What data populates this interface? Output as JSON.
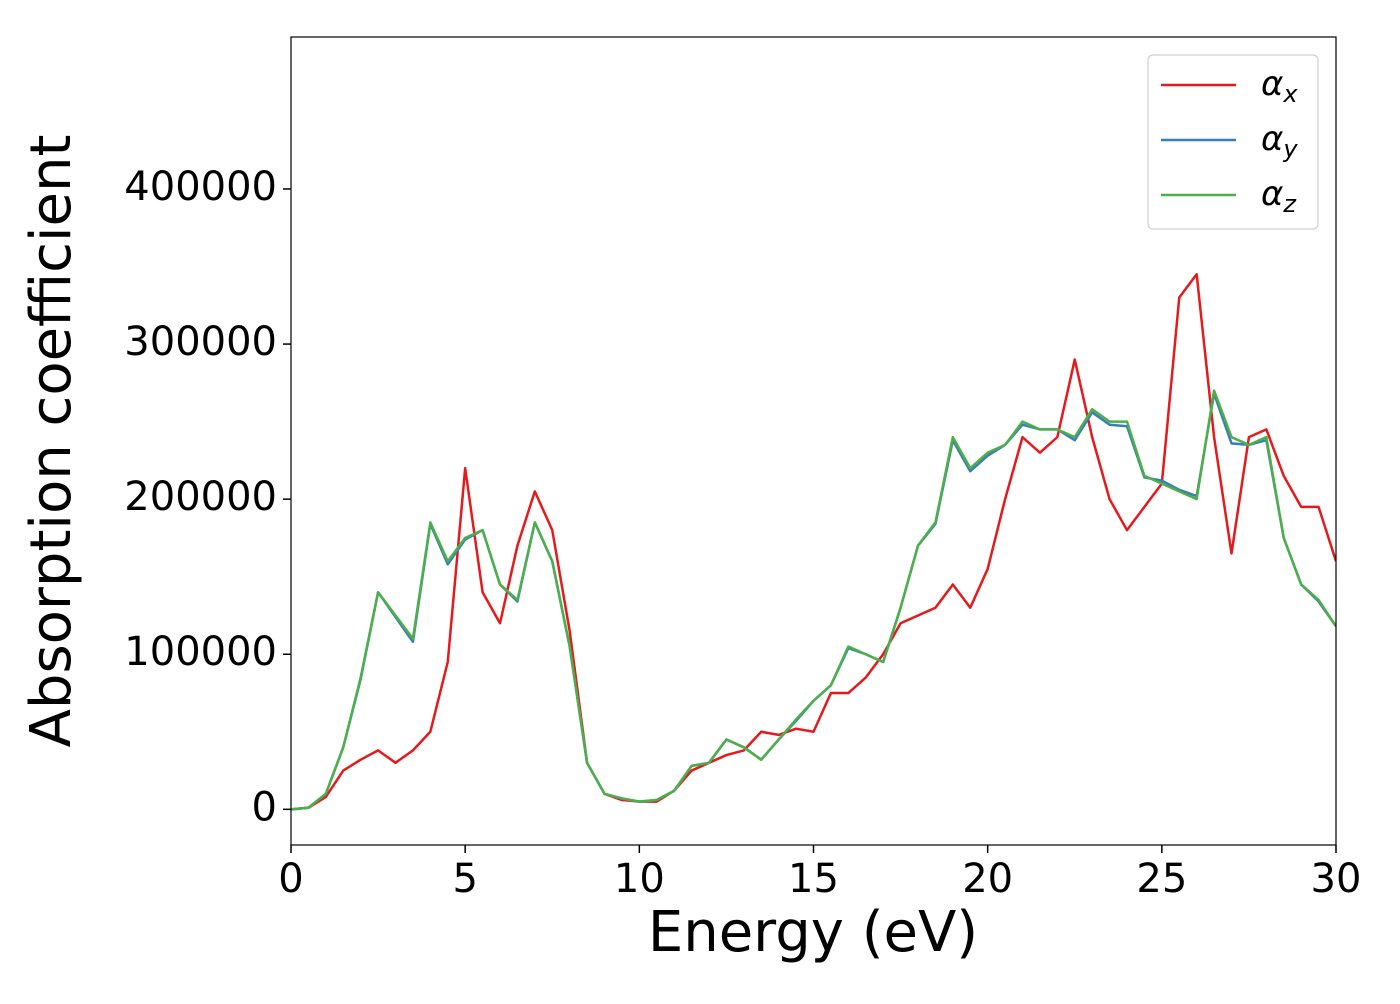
{
  "chart_data": {
    "type": "line",
    "xlabel": "Energy (eV)",
    "ylabel": "Absorption coefficient",
    "x": [
      0,
      0.5,
      1,
      1.5,
      2,
      2.5,
      3,
      3.5,
      4,
      4.5,
      5,
      5.5,
      6,
      6.5,
      7,
      7.5,
      8,
      8.5,
      9,
      9.5,
      10,
      10.5,
      11,
      11.5,
      12,
      12.5,
      13,
      13.5,
      14,
      14.5,
      15,
      15.5,
      16,
      16.5,
      17,
      17.5,
      18,
      18.5,
      19,
      19.5,
      20,
      20.5,
      21,
      21.5,
      22,
      22.5,
      23,
      23.5,
      24,
      24.5,
      25,
      25.5,
      26,
      26.5,
      27,
      27.5,
      28,
      28.5,
      29,
      29.5,
      30
    ],
    "series": [
      {
        "name": "αx",
        "color": "#e41a1c",
        "values": [
          0,
          1000,
          8000,
          25000,
          32000,
          38000,
          30000,
          38000,
          50000,
          95000,
          220000,
          140000,
          120000,
          170000,
          205000,
          180000,
          115000,
          30000,
          10000,
          6000,
          5000,
          5000,
          12000,
          25000,
          30000,
          35000,
          38000,
          50000,
          48000,
          52000,
          50000,
          75000,
          75000,
          85000,
          100000,
          120000,
          125000,
          130000,
          145000,
          130000,
          155000,
          200000,
          240000,
          230000,
          240000,
          290000,
          240000,
          200000,
          180000,
          195000,
          210000,
          330000,
          345000,
          240000,
          165000,
          240000,
          245000,
          215000,
          195000,
          195000,
          160000
        ]
      },
      {
        "name": "αy",
        "color": "#377eb8",
        "values": [
          0,
          1000,
          10000,
          40000,
          84000,
          140000,
          124000,
          108000,
          184000,
          158000,
          174000,
          180000,
          145000,
          134000,
          185000,
          160000,
          105000,
          30000,
          10000,
          7000,
          5000,
          6000,
          12000,
          28000,
          30000,
          45000,
          40000,
          32000,
          45000,
          57000,
          70000,
          80000,
          104000,
          100000,
          95000,
          130000,
          170000,
          184000,
          238000,
          218000,
          228000,
          235000,
          248000,
          245000,
          245000,
          238000,
          256000,
          248000,
          247000,
          214000,
          212000,
          206000,
          202000,
          268000,
          236000,
          235000,
          238000,
          175000,
          145000,
          134000,
          118000
        ]
      },
      {
        "name": "αz",
        "color": "#4daf4a",
        "values": [
          0,
          1000,
          10000,
          40000,
          85000,
          140000,
          125000,
          110000,
          185000,
          160000,
          175000,
          180000,
          145000,
          135000,
          185000,
          160000,
          105000,
          30000,
          10000,
          7000,
          5000,
          6000,
          12000,
          28000,
          30000,
          45000,
          40000,
          32000,
          45000,
          58000,
          70000,
          80000,
          105000,
          100000,
          95000,
          130000,
          170000,
          185000,
          240000,
          220000,
          230000,
          235000,
          250000,
          245000,
          245000,
          240000,
          258000,
          250000,
          250000,
          215000,
          210000,
          205000,
          200000,
          270000,
          240000,
          235000,
          240000,
          175000,
          145000,
          135000,
          118000
        ]
      }
    ],
    "xlim": [
      0,
      30
    ],
    "xticks": [
      0,
      5,
      10,
      15,
      20,
      25,
      30
    ],
    "ylim": [
      -23000,
      498000
    ],
    "yticks": [
      0,
      100000,
      200000,
      300000,
      400000
    ],
    "legend": "upper right",
    "grid": false
  }
}
